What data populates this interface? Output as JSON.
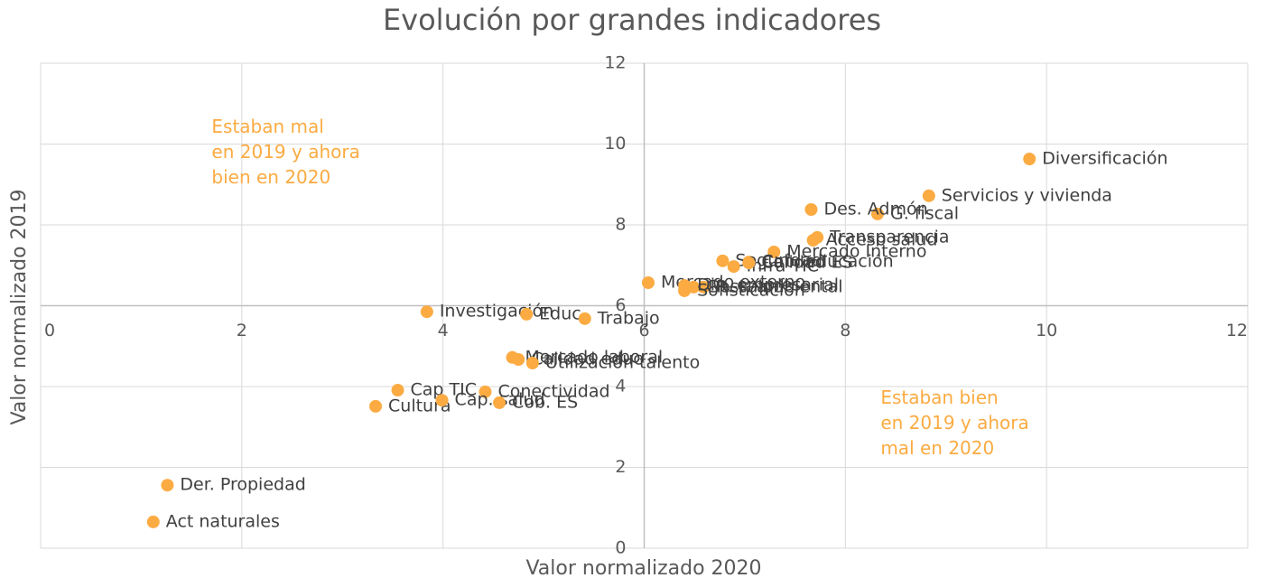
{
  "chart_data": {
    "type": "scatter",
    "title": "Evolución por grandes indicadores",
    "x_label": "Valor normalizado 2020",
    "y_label": "Valor normalizado 2019",
    "color": "#fbab42",
    "xlim": [
      0,
      12
    ],
    "ylim": [
      0,
      12
    ],
    "xticks": [
      0,
      2,
      4,
      6,
      8,
      10,
      12
    ],
    "yticks": [
      0,
      2,
      4,
      6,
      8,
      10,
      12
    ],
    "axis_cross": {
      "x": 6,
      "y": 6
    },
    "grid": true,
    "annotations": [
      {
        "lines": [
          "Estaban mal",
          "en 2019 y ahora",
          "bien en 2020"
        ],
        "x": 1.7,
        "y": 10.4
      },
      {
        "lines": [
          "Estaban bien",
          "en 2019 y ahora",
          "mal en 2020"
        ],
        "x": 8.35,
        "y": 3.7
      }
    ],
    "labels": [
      "Diversificación",
      "Servicios y vivienda",
      "G. fiscal",
      "Des. Admón",
      "Transparencia",
      "Acceso salud",
      "Mercado Interno",
      "Cob. educación",
      "Seguridad",
      "Infra TIC",
      "Calidad ES",
      "Mercado externo",
      "R. salud",
      "Gest. ambiental",
      "Sofisticación",
      "Din. empresarial",
      "Investigación",
      "Educ.",
      "Trabajo",
      "Mercado laboral",
      "Calidad educ",
      "Utilización talento",
      "Conectividad",
      "Cap TIC",
      "Cultura",
      "Cap. salud",
      "Cob. ES",
      "Der. Propiedad",
      "Act naturales"
    ],
    "x": [
      9.83,
      8.83,
      8.32,
      7.66,
      7.72,
      7.68,
      7.29,
      7.04,
      6.78,
      6.89,
      7.04,
      6.04,
      6.59,
      6.49,
      6.4,
      6.4,
      3.84,
      4.83,
      5.41,
      4.69,
      4.75,
      4.89,
      4.42,
      3.55,
      3.33,
      3.99,
      4.56,
      1.26,
      1.12
    ],
    "y": [
      9.63,
      8.72,
      8.27,
      8.38,
      7.69,
      7.62,
      7.33,
      7.08,
      7.11,
      6.97,
      7.06,
      6.57,
      6.46,
      6.46,
      6.37,
      6.5,
      5.85,
      5.79,
      5.68,
      4.72,
      4.67,
      4.58,
      3.87,
      3.91,
      3.51,
      3.66,
      3.6,
      1.56,
      0.65
    ]
  }
}
